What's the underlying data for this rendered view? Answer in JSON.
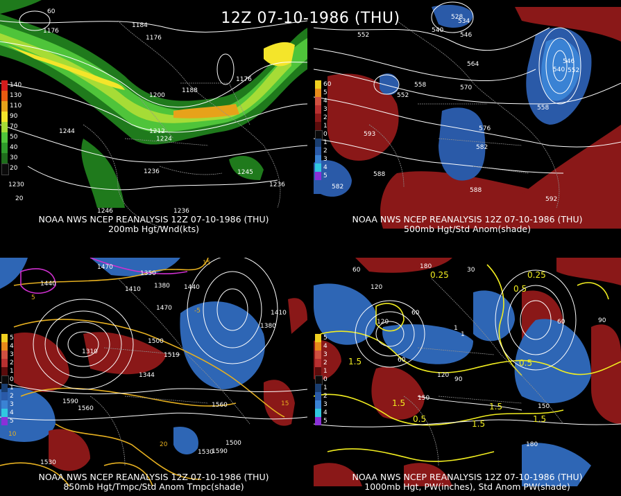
{
  "title": "12Z 07-10-1986 (THU)",
  "panels": [
    {
      "caption1": "NOAA NWS NCEP REANALYSIS 12Z 07-10-1986 (THU)",
      "caption2": "200mb Hgt/Wnd(kts)",
      "legend": [
        {
          "label": "140",
          "color": "#d41c1c"
        },
        {
          "label": "130",
          "color": "#e85a10"
        },
        {
          "label": "110",
          "color": "#e7a21a"
        },
        {
          "label": "90",
          "color": "#f4e52a"
        },
        {
          "label": "70",
          "color": "#a6dc36"
        },
        {
          "label": "50",
          "color": "#4fc43a"
        },
        {
          "label": "40",
          "color": "#2e9a2a"
        },
        {
          "label": "30",
          "color": "#1f6d1c"
        },
        {
          "label": "20",
          "color": "#0a0a0a"
        }
      ],
      "labels": [
        "1176",
        "1184",
        "1176",
        "1200",
        "1188",
        "1212",
        "1224",
        "1236",
        "1236",
        "1246",
        "1244",
        "1245",
        "1236",
        "1230",
        "1176",
        "60",
        "20"
      ]
    },
    {
      "caption1": "NOAA NWS NCEP REANALYSIS 12Z 07-10-1986 (THU)",
      "caption2": "500mb Hgt/Std Anom(shade)",
      "legend": [
        {
          "label": "60",
          "color": "#f0d020"
        },
        {
          "label": "5",
          "color": "#e88a1a"
        },
        {
          "label": "4",
          "color": "#d05040"
        },
        {
          "label": "3",
          "color": "#b83030"
        },
        {
          "label": "2",
          "color": "#8a1818"
        },
        {
          "label": "1",
          "color": "#5a0c0c"
        },
        {
          "label": "0",
          "color": "#0a0a0a"
        },
        {
          "label": "1",
          "color": "#1a3e70"
        },
        {
          "label": "2",
          "color": "#2a5aa8"
        },
        {
          "label": "3",
          "color": "#3a82d4"
        },
        {
          "label": "4",
          "color": "#30c8e0"
        },
        {
          "label": "5",
          "color": "#8a30d8"
        }
      ],
      "labels": [
        "552",
        "558",
        "552",
        "564",
        "570",
        "576",
        "582",
        "588",
        "588",
        "592",
        "593",
        "582",
        "558",
        "546",
        "552",
        "540",
        "534",
        "528",
        "546",
        "540"
      ]
    },
    {
      "caption1": "NOAA NWS NCEP REANALYSIS 12Z 07-10-1986 (THU)",
      "caption2": "850mb Hgt/Tmpc/Std Anom Tmpc(shade)",
      "legend": [
        {
          "label": "5",
          "color": "#f0d020"
        },
        {
          "label": "4",
          "color": "#e88a1a"
        },
        {
          "label": "3",
          "color": "#d05040"
        },
        {
          "label": "2",
          "color": "#b83030"
        },
        {
          "label": "1",
          "color": "#5a0c0c"
        },
        {
          "label": "0",
          "color": "#0a0a0a"
        },
        {
          "label": "1",
          "color": "#1a3e70"
        },
        {
          "label": "2",
          "color": "#2a5aa8"
        },
        {
          "label": "3",
          "color": "#3a82d4"
        },
        {
          "label": "4",
          "color": "#30c8e0"
        },
        {
          "label": "5",
          "color": "#8a30d8"
        }
      ],
      "labels": [
        "1470",
        "1440",
        "1410",
        "1380",
        "1350",
        "1440",
        "1470",
        "1500",
        "1380",
        "1410",
        "1590",
        "1560",
        "1560",
        "1530",
        "1530",
        "1590",
        "1500",
        "1310",
        "1519",
        "1344",
        "15",
        "20",
        "10",
        "5",
        "-5",
        "15"
      ]
    },
    {
      "caption1": "NOAA NWS NCEP REANALYSIS 12Z 07-10-1986 (THU)",
      "caption2": "1000mb Hgt, PW(inches), Std Anom PW(shade)",
      "legend": [
        {
          "label": "5",
          "color": "#f0d020"
        },
        {
          "label": "4",
          "color": "#e88a1a"
        },
        {
          "label": "3",
          "color": "#d05040"
        },
        {
          "label": "2",
          "color": "#b83030"
        },
        {
          "label": "1",
          "color": "#5a0c0c"
        },
        {
          "label": "0",
          "color": "#0a0a0a"
        },
        {
          "label": "1",
          "color": "#1a3e70"
        },
        {
          "label": "2",
          "color": "#2a5aa8"
        },
        {
          "label": "3",
          "color": "#3a82d4"
        },
        {
          "label": "4",
          "color": "#30c8e0"
        },
        {
          "label": "5",
          "color": "#8a30d8"
        }
      ],
      "labels": [
        "180",
        "120",
        "60",
        "60",
        "60",
        "30",
        "120",
        "90",
        "150",
        "150",
        "180",
        "120",
        "90",
        "60",
        "1.5",
        "1.5",
        "1.5",
        "1.5",
        "0.5",
        "0.5",
        "0.25",
        "0.25",
        "0.5",
        "1",
        "1",
        "1.5"
      ]
    }
  ],
  "colors": {
    "jet": "#f2dd3a",
    "positive_anom": "#9a1414",
    "negative_anom": "#2e66b5",
    "contour": "#ffffff",
    "temperature": "#e6b020",
    "pw": "#f2ee20",
    "coast": "#909090"
  }
}
